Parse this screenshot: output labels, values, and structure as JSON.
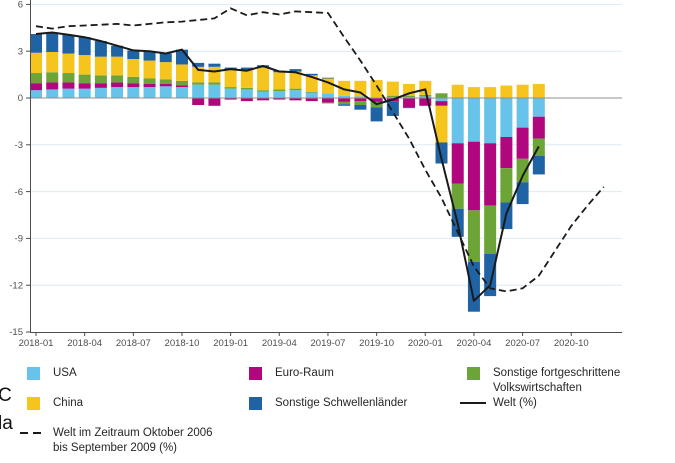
{
  "chart_data": {
    "type": "bar",
    "subtype": "stacked-bar-with-lines",
    "title": "",
    "xlabel": "",
    "ylabel": "",
    "ylim": [
      -15,
      6.3
    ],
    "grid": true,
    "legend_position": "bottom",
    "y_ticks": [
      6,
      3,
      0,
      -3,
      -6,
      -9,
      -12,
      -15
    ],
    "x_tick_labels": [
      "2018-01",
      "2018-04",
      "2018-07",
      "2018-10",
      "2019-01",
      "2019-04",
      "2019-07",
      "2019-10",
      "2020-01",
      "2020-04",
      "2020-07",
      "2020-10"
    ],
    "x_tick_step": 3,
    "months": [
      "2018-01",
      "2018-02",
      "2018-03",
      "2018-04",
      "2018-05",
      "2018-06",
      "2018-07",
      "2018-08",
      "2018-09",
      "2018-10",
      "2018-11",
      "2018-12",
      "2019-01",
      "2019-02",
      "2019-03",
      "2019-04",
      "2019-05",
      "2019-06",
      "2019-07",
      "2019-08",
      "2019-09",
      "2019-10",
      "2019-11",
      "2019-12",
      "2020-01",
      "2020-02",
      "2020-03",
      "2020-04",
      "2020-05",
      "2020-06",
      "2020-07",
      "2020-08"
    ],
    "series": [
      {
        "name": "USA",
        "color": "#67C3EA",
        "values": [
          0.5,
          0.55,
          0.6,
          0.6,
          0.65,
          0.7,
          0.7,
          0.7,
          0.75,
          0.7,
          0.85,
          0.85,
          0.6,
          0.55,
          0.4,
          0.45,
          0.5,
          0.35,
          0.3,
          0.15,
          0.1,
          0.05,
          0.05,
          0.05,
          0.1,
          -0.2,
          -2.9,
          -2.8,
          -2.9,
          -2.5,
          -1.9,
          -1.2
        ]
      },
      {
        "name": "Euro-Raum",
        "color": "#B0067E",
        "values": [
          0.45,
          0.45,
          0.4,
          0.35,
          0.3,
          0.3,
          0.25,
          0.2,
          0.15,
          0.1,
          -0.45,
          -0.5,
          -0.1,
          -0.2,
          -0.15,
          -0.1,
          -0.15,
          -0.2,
          -0.3,
          -0.25,
          -0.2,
          -0.25,
          -0.2,
          -0.6,
          -0.5,
          -0.3,
          -2.6,
          -4.4,
          -4.0,
          -2.0,
          -2.0,
          -1.4
        ]
      },
      {
        "name": "Sonstige fortgeschrittene Volkswirtschaften",
        "color": "#6CA437",
        "values": [
          0.65,
          0.65,
          0.6,
          0.55,
          0.5,
          0.45,
          0.4,
          0.35,
          0.3,
          0.3,
          0.15,
          0.15,
          0.1,
          0.1,
          0.1,
          0.1,
          0.1,
          0.05,
          -0.05,
          -0.15,
          -0.25,
          -0.35,
          0.1,
          0.1,
          0.1,
          0.3,
          -1.6,
          -3.3,
          -3.1,
          -2.2,
          -1.5,
          -1.1
        ]
      },
      {
        "name": "China",
        "color": "#F6C51D",
        "values": [
          1.3,
          1.3,
          1.25,
          1.25,
          1.2,
          1.2,
          1.15,
          1.15,
          1.1,
          1.05,
          1.0,
          1.0,
          1.1,
          1.15,
          1.45,
          1.1,
          1.1,
          1.05,
          0.95,
          0.95,
          1.0,
          1.1,
          0.9,
          0.75,
          0.9,
          -2.35,
          0.85,
          0.7,
          0.7,
          0.8,
          0.85,
          0.9
        ]
      },
      {
        "name": "Sonstige Schwellenländer",
        "color": "#1F63A4",
        "values": [
          1.2,
          1.25,
          1.2,
          1.15,
          1.0,
          0.7,
          0.55,
          0.6,
          0.55,
          0.95,
          0.25,
          0.2,
          0.15,
          0.15,
          0.15,
          0.1,
          0.15,
          0.1,
          0.05,
          -0.1,
          -0.3,
          -0.9,
          -0.95,
          -0.05,
          0.0,
          -1.35,
          -1.8,
          -3.2,
          -2.7,
          -1.7,
          -1.4,
          -1.2
        ]
      }
    ],
    "lines": [
      {
        "name": "Welt (%)",
        "style": "solid",
        "color": "#1a1a1a",
        "values": [
          4.1,
          4.2,
          4.05,
          3.9,
          3.65,
          3.35,
          3.05,
          3.0,
          2.85,
          3.1,
          1.8,
          1.7,
          1.85,
          1.75,
          2.05,
          1.7,
          1.65,
          1.35,
          1.0,
          0.55,
          0.35,
          -0.4,
          -0.1,
          0.3,
          0.55,
          -3.9,
          -8.05,
          -13.0,
          -12.0,
          -7.4,
          -5.0,
          -3.1
        ]
      },
      {
        "name": "Welt im Zeitraum Oktober 2006 bis September 2009 (%)",
        "style": "dashed",
        "color": "#1a1a1a",
        "note": "extends beyond bars to 2020-12",
        "values": [
          4.6,
          4.45,
          4.6,
          4.65,
          4.7,
          4.75,
          4.65,
          4.75,
          4.85,
          4.9,
          5.0,
          5.1,
          5.75,
          5.3,
          5.5,
          5.35,
          5.55,
          5.5,
          5.45,
          3.9,
          2.4,
          0.8,
          -0.9,
          -2.6,
          -4.6,
          -6.4,
          -8.6,
          -10.8,
          -12.2,
          -12.4,
          -12.2,
          -11.4,
          -9.8,
          -8.2,
          -6.9,
          -5.7
        ]
      }
    ]
  },
  "legend": {
    "columns": [
      {
        "items": [
          {
            "marker": "square",
            "color": "#67C3EA",
            "label": "USA"
          },
          {
            "marker": "square",
            "color": "#F6C51D",
            "label": "China"
          },
          {
            "marker": "dashed-line",
            "color": "#1a1a1a",
            "label": "Welt im Zeitraum Oktober 2006\nbis September 2009 (%)"
          }
        ]
      },
      {
        "items": [
          {
            "marker": "square",
            "color": "#B0067E",
            "label": "Euro-Raum"
          },
          {
            "marker": "square",
            "color": "#1F63A4",
            "label": "Sonstige Schwellenländer"
          }
        ]
      },
      {
        "items": [
          {
            "marker": "square",
            "color": "#6CA437",
            "label": "Sonstige fortgeschrittene\nVolkswirtschaften"
          },
          {
            "marker": "solid-line",
            "color": "#1a1a1a",
            "label": "Welt (%)"
          }
        ]
      }
    ]
  },
  "clipped_text": {
    "char1": "C",
    "char2": "la"
  },
  "style": {
    "axis_color": "#4d4d4d",
    "grid_color": "#dde9f2",
    "zero_line_color": "#8f8f8f"
  }
}
